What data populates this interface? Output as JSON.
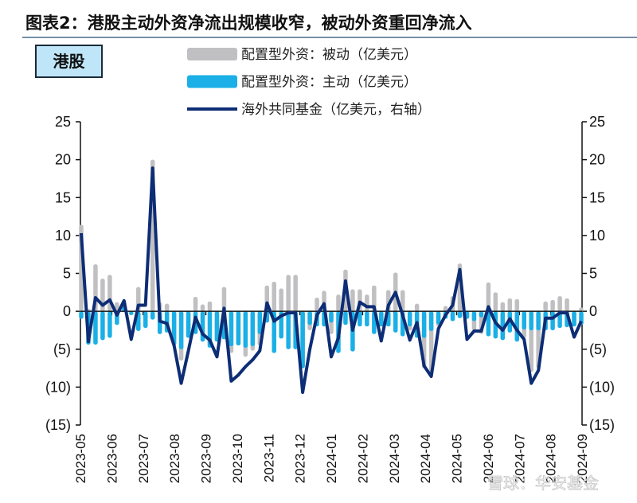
{
  "title": "图表2：港股主动外资净流出规模收窄，被动外资重回净流入",
  "badge": "港股",
  "watermark": "雪球：华安基金",
  "colors": {
    "passive": "#c0c0c2",
    "active": "#1aafe6",
    "fund": "#0d2d75",
    "badge_bg": "#bfe6f8",
    "title_rule": "#4a6a8a"
  },
  "chart_data": {
    "type": "bar+line",
    "x_tick_labels": [
      "2023-05",
      "2023-06",
      "2023-07",
      "2023-08",
      "2023-09",
      "2023-10",
      "2023-11",
      "2023-12",
      "2024-01",
      "2024-02",
      "2024-03",
      "2024-04",
      "2024-05",
      "2024-06",
      "2024-07",
      "2024-08",
      "2024-09"
    ],
    "y_left": {
      "range": [
        -15,
        25
      ],
      "ticks": [
        25,
        20,
        15,
        10,
        5,
        0,
        -5,
        -10,
        -15
      ],
      "tick_labels": [
        "25",
        "20",
        "15",
        "10",
        "5",
        "0",
        "(5)",
        "(10)",
        "(15)"
      ]
    },
    "y_right": {
      "range": [
        -15,
        25
      ],
      "ticks": [
        25,
        20,
        15,
        10,
        5,
        0,
        -5,
        -10,
        -15
      ],
      "tick_labels": [
        "25",
        "20",
        "15",
        "10",
        "5",
        "0",
        "(5)",
        "(10)",
        "(15)"
      ]
    },
    "legend_placement": "top-center",
    "grid": false,
    "series": [
      {
        "name": "配置型外资：被动（亿美元）",
        "type": "bar",
        "axis": "left",
        "values": [
          11.4,
          0.3,
          6.2,
          4.3,
          4.8,
          1.2,
          0.5,
          0,
          3.2,
          0,
          20,
          1.2,
          1,
          -4,
          -6.5,
          -3.5,
          1.9,
          0.9,
          1.3,
          -4,
          3.2,
          -5.5,
          -4.5,
          -6,
          -5.2,
          -4.5,
          3.4,
          3.9,
          3,
          4.8,
          4.8,
          -7.5,
          -2.5,
          1.8,
          2.7,
          -3,
          2.2,
          5.5,
          2.9,
          2.9,
          2.2,
          3.4,
          -2,
          2.8,
          5.1,
          2.8,
          -2.5,
          1,
          -7.5,
          -8,
          -2,
          0.7,
          2,
          6.3,
          -1,
          -2.5,
          -3,
          3.8,
          2.5,
          1.2,
          1.7,
          1.6,
          -3.5,
          -8,
          -7.5,
          1.3,
          1.5,
          2,
          1.7,
          -2,
          0.5
        ]
      },
      {
        "name": "配置型外资：主动（亿美元）",
        "type": "bar",
        "axis": "left",
        "values": [
          -1,
          -4.4,
          -4.4,
          -3.8,
          -3.5,
          -1.8,
          1.3,
          -0.5,
          -2.6,
          -2.2,
          -1.1,
          -3,
          -2.8,
          -4.5,
          -5,
          -3.5,
          -3,
          -4,
          -4.8,
          -4,
          -3.7,
          -4.6,
          -4.5,
          -4.8,
          -4.6,
          -3,
          -1.5,
          -5.5,
          -3.6,
          -5,
          -5,
          -7.5,
          -1.8,
          -2,
          -2,
          -1.5,
          -5.5,
          -1.8,
          -5.3,
          -2,
          -2,
          -3,
          -2,
          -2,
          -2.8,
          -3.3,
          -2,
          -3.5,
          -3.5,
          -2.6,
          -1.7,
          -1,
          -1.3,
          -0.9,
          -1,
          -1.3,
          -0.8,
          -3.3,
          -3.6,
          -3.8,
          -2.8,
          -4,
          -2.4,
          -2.5,
          -2.5,
          -2.5,
          -2.5,
          -2.2,
          -2.1,
          -2,
          -1.8
        ]
      },
      {
        "name": "海外共同基金（亿美元，右轴）",
        "type": "line",
        "axis": "right",
        "values": [
          10.3,
          -4,
          1.8,
          0.8,
          1.5,
          -0.5,
          1.4,
          -3.7,
          0.8,
          0.8,
          18.9,
          -1.3,
          -1.6,
          -4.5,
          -9.5,
          -5.2,
          -0.8,
          -3,
          -3.8,
          -6,
          0.4,
          -9.2,
          -8.4,
          -7.3,
          -6.4,
          -5.2,
          1.1,
          -1.3,
          -0.6,
          -0.2,
          -0.2,
          -10.7,
          -5,
          -0.5,
          1,
          -6,
          -3.5,
          4,
          -2.5,
          1.2,
          0.6,
          0.6,
          -3.9,
          0.8,
          2.5,
          -0.5,
          -3.8,
          -1.5,
          -7.2,
          -8.6,
          -2.3,
          -0.5,
          0.8,
          5.5,
          -3.7,
          -2.6,
          -2.6,
          0.6,
          -1.5,
          -2.5,
          -1,
          -2.5,
          -3.7,
          -9.5,
          -7.8,
          -0.9,
          -0.9,
          -0.2,
          -0.2,
          -3.4,
          -1.3
        ]
      }
    ]
  }
}
